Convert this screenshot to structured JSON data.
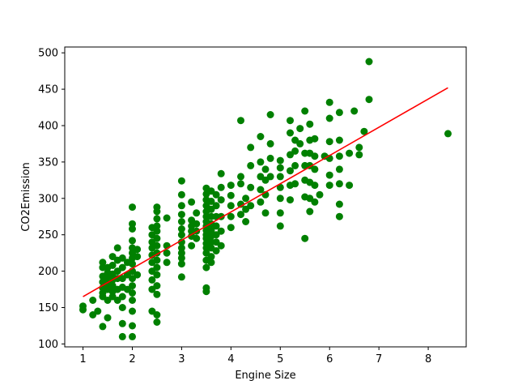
{
  "chart_data": {
    "type": "scatter",
    "title": "",
    "xlabel": "Engine Size",
    "ylabel": "CO2Emission",
    "xlim": [
      0.63,
      8.77
    ],
    "ylim": [
      96,
      508
    ],
    "xticks": [
      1,
      2,
      3,
      4,
      5,
      6,
      7,
      8
    ],
    "yticks": [
      100,
      150,
      200,
      250,
      300,
      350,
      400,
      450,
      500
    ],
    "grid": false,
    "legend": "none",
    "colors": {
      "points": "#008000",
      "fit_line": "#ff0000",
      "axes": "#000000",
      "background": "#ffffff"
    },
    "series": [
      {
        "type": "scatter",
        "points": [
          [
            1.0,
            147
          ],
          [
            1.0,
            152
          ],
          [
            1.2,
            140
          ],
          [
            1.2,
            160
          ],
          [
            1.3,
            145
          ],
          [
            1.4,
            124
          ],
          [
            1.4,
            165
          ],
          [
            1.4,
            170
          ],
          [
            1.4,
            177
          ],
          [
            1.4,
            185
          ],
          [
            1.4,
            193
          ],
          [
            1.4,
            205
          ],
          [
            1.4,
            212
          ],
          [
            1.5,
            136
          ],
          [
            1.5,
            160
          ],
          [
            1.5,
            175
          ],
          [
            1.5,
            182
          ],
          [
            1.5,
            190
          ],
          [
            1.5,
            198
          ],
          [
            1.5,
            205
          ],
          [
            1.6,
            165
          ],
          [
            1.6,
            172
          ],
          [
            1.6,
            180
          ],
          [
            1.6,
            188
          ],
          [
            1.6,
            196
          ],
          [
            1.6,
            208
          ],
          [
            1.6,
            220
          ],
          [
            1.7,
            160
          ],
          [
            1.7,
            175
          ],
          [
            1.7,
            190
          ],
          [
            1.7,
            200
          ],
          [
            1.7,
            215
          ],
          [
            1.7,
            232
          ],
          [
            1.8,
            110
          ],
          [
            1.8,
            128
          ],
          [
            1.8,
            150
          ],
          [
            1.8,
            165
          ],
          [
            1.8,
            178
          ],
          [
            1.8,
            190
          ],
          [
            1.8,
            205
          ],
          [
            1.8,
            218
          ],
          [
            1.9,
            175
          ],
          [
            1.9,
            195
          ],
          [
            1.9,
            212
          ],
          [
            2.0,
            110
          ],
          [
            2.0,
            125
          ],
          [
            2.0,
            145
          ],
          [
            2.0,
            160
          ],
          [
            2.0,
            170
          ],
          [
            2.0,
            180
          ],
          [
            2.0,
            190
          ],
          [
            2.0,
            200
          ],
          [
            2.0,
            210
          ],
          [
            2.0,
            218
          ],
          [
            2.0,
            225
          ],
          [
            2.0,
            232
          ],
          [
            2.0,
            242
          ],
          [
            2.0,
            258
          ],
          [
            2.0,
            265
          ],
          [
            2.0,
            288
          ],
          [
            2.1,
            195
          ],
          [
            2.1,
            220
          ],
          [
            2.1,
            230
          ],
          [
            2.4,
            145
          ],
          [
            2.4,
            175
          ],
          [
            2.4,
            188
          ],
          [
            2.4,
            200
          ],
          [
            2.4,
            212
          ],
          [
            2.4,
            222
          ],
          [
            2.4,
            232
          ],
          [
            2.4,
            240
          ],
          [
            2.4,
            250
          ],
          [
            2.4,
            260
          ],
          [
            2.5,
            130
          ],
          [
            2.5,
            140
          ],
          [
            2.5,
            168
          ],
          [
            2.5,
            180
          ],
          [
            2.5,
            195
          ],
          [
            2.5,
            205
          ],
          [
            2.5,
            215
          ],
          [
            2.5,
            225
          ],
          [
            2.5,
            235
          ],
          [
            2.5,
            245
          ],
          [
            2.5,
            255
          ],
          [
            2.5,
            262
          ],
          [
            2.5,
            272
          ],
          [
            2.5,
            282
          ],
          [
            2.5,
            288
          ],
          [
            2.7,
            212
          ],
          [
            2.7,
            225
          ],
          [
            2.7,
            235
          ],
          [
            2.7,
            273
          ],
          [
            3.0,
            192
          ],
          [
            3.0,
            210
          ],
          [
            3.0,
            218
          ],
          [
            3.0,
            225
          ],
          [
            3.0,
            232
          ],
          [
            3.0,
            240
          ],
          [
            3.0,
            250
          ],
          [
            3.0,
            258
          ],
          [
            3.0,
            268
          ],
          [
            3.0,
            278
          ],
          [
            3.0,
            290
          ],
          [
            3.0,
            305
          ],
          [
            3.0,
            324
          ],
          [
            3.2,
            235
          ],
          [
            3.2,
            248
          ],
          [
            3.2,
            255
          ],
          [
            3.2,
            262
          ],
          [
            3.2,
            270
          ],
          [
            3.2,
            295
          ],
          [
            3.3,
            245
          ],
          [
            3.3,
            255
          ],
          [
            3.3,
            265
          ],
          [
            3.3,
            280
          ],
          [
            3.5,
            172
          ],
          [
            3.5,
            177
          ],
          [
            3.5,
            205
          ],
          [
            3.5,
            215
          ],
          [
            3.5,
            225
          ],
          [
            3.5,
            232
          ],
          [
            3.5,
            238
          ],
          [
            3.5,
            245
          ],
          [
            3.5,
            250
          ],
          [
            3.5,
            256
          ],
          [
            3.5,
            262
          ],
          [
            3.5,
            268
          ],
          [
            3.5,
            275
          ],
          [
            3.5,
            282
          ],
          [
            3.5,
            290
          ],
          [
            3.5,
            298
          ],
          [
            3.5,
            306
          ],
          [
            3.5,
            314
          ],
          [
            3.6,
            212
          ],
          [
            3.6,
            220
          ],
          [
            3.6,
            232
          ],
          [
            3.6,
            240
          ],
          [
            3.6,
            248
          ],
          [
            3.6,
            256
          ],
          [
            3.6,
            265
          ],
          [
            3.6,
            275
          ],
          [
            3.6,
            285
          ],
          [
            3.6,
            296
          ],
          [
            3.6,
            310
          ],
          [
            3.7,
            228
          ],
          [
            3.7,
            240
          ],
          [
            3.7,
            250
          ],
          [
            3.7,
            262
          ],
          [
            3.7,
            275
          ],
          [
            3.7,
            290
          ],
          [
            3.7,
            305
          ],
          [
            3.8,
            235
          ],
          [
            3.8,
            255
          ],
          [
            3.8,
            275
          ],
          [
            3.8,
            298
          ],
          [
            3.8,
            315
          ],
          [
            3.8,
            334
          ],
          [
            4.0,
            260
          ],
          [
            4.0,
            275
          ],
          [
            4.0,
            290
          ],
          [
            4.0,
            304
          ],
          [
            4.0,
            318
          ],
          [
            4.2,
            278
          ],
          [
            4.2,
            292
          ],
          [
            4.2,
            320
          ],
          [
            4.2,
            330
          ],
          [
            4.2,
            407
          ],
          [
            4.3,
            268
          ],
          [
            4.3,
            285
          ],
          [
            4.3,
            300
          ],
          [
            4.4,
            290
          ],
          [
            4.4,
            315
          ],
          [
            4.4,
            345
          ],
          [
            4.4,
            370
          ],
          [
            4.6,
            295
          ],
          [
            4.6,
            312
          ],
          [
            4.6,
            330
          ],
          [
            4.6,
            350
          ],
          [
            4.6,
            385
          ],
          [
            4.7,
            280
          ],
          [
            4.7,
            305
          ],
          [
            4.7,
            325
          ],
          [
            4.7,
            340
          ],
          [
            4.8,
            330
          ],
          [
            4.8,
            355
          ],
          [
            4.8,
            375
          ],
          [
            4.8,
            415
          ],
          [
            5.0,
            262
          ],
          [
            5.0,
            280
          ],
          [
            5.0,
            300
          ],
          [
            5.0,
            315
          ],
          [
            5.0,
            330
          ],
          [
            5.0,
            342
          ],
          [
            5.0,
            352
          ],
          [
            5.2,
            298
          ],
          [
            5.2,
            318
          ],
          [
            5.2,
            338
          ],
          [
            5.2,
            360
          ],
          [
            5.2,
            390
          ],
          [
            5.2,
            407
          ],
          [
            5.3,
            320
          ],
          [
            5.3,
            345
          ],
          [
            5.3,
            365
          ],
          [
            5.3,
            380
          ],
          [
            5.4,
            375
          ],
          [
            5.4,
            396
          ],
          [
            5.5,
            245
          ],
          [
            5.5,
            302
          ],
          [
            5.5,
            325
          ],
          [
            5.5,
            345
          ],
          [
            5.5,
            362
          ],
          [
            5.5,
            420
          ],
          [
            5.6,
            282
          ],
          [
            5.6,
            300
          ],
          [
            5.6,
            322
          ],
          [
            5.6,
            345
          ],
          [
            5.6,
            362
          ],
          [
            5.6,
            380
          ],
          [
            5.6,
            402
          ],
          [
            5.7,
            295
          ],
          [
            5.7,
            318
          ],
          [
            5.7,
            340
          ],
          [
            5.7,
            358
          ],
          [
            5.7,
            382
          ],
          [
            5.8,
            305
          ],
          [
            5.9,
            358
          ],
          [
            6.0,
            318
          ],
          [
            6.0,
            332
          ],
          [
            6.0,
            355
          ],
          [
            6.0,
            378
          ],
          [
            6.0,
            410
          ],
          [
            6.0,
            432
          ],
          [
            6.2,
            275
          ],
          [
            6.2,
            292
          ],
          [
            6.2,
            320
          ],
          [
            6.2,
            340
          ],
          [
            6.2,
            358
          ],
          [
            6.2,
            380
          ],
          [
            6.2,
            418
          ],
          [
            6.4,
            318
          ],
          [
            6.4,
            362
          ],
          [
            6.5,
            420
          ],
          [
            6.6,
            360
          ],
          [
            6.6,
            370
          ],
          [
            6.7,
            392
          ],
          [
            6.8,
            436
          ],
          [
            6.8,
            488
          ],
          [
            8.4,
            389
          ]
        ]
      },
      {
        "type": "line",
        "points": [
          [
            1.0,
            165
          ],
          [
            8.4,
            452
          ]
        ]
      }
    ]
  }
}
